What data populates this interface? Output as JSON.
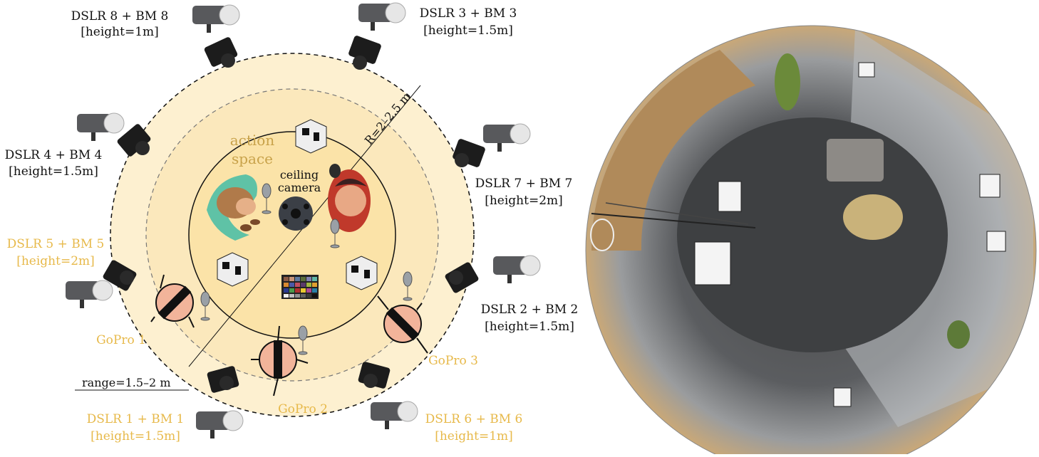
{
  "diagram": {
    "labels": {
      "dslr8": {
        "title": "DSLR 8 + BM 8",
        "height": "[height=1m]"
      },
      "dslr3": {
        "title": "DSLR 3 + BM 3",
        "height": "[height=1.5m]"
      },
      "dslr4": {
        "title": "DSLR 4 + BM 4",
        "height": "[height=1.5m]"
      },
      "dslr7": {
        "title": "DSLR 7 + BM 7",
        "height": "[height=2m]"
      },
      "dslr5": {
        "title": "DSLR 5 + BM 5",
        "height": "[height=2m]"
      },
      "dslr2": {
        "title": "DSLR 2 + BM 2",
        "height": "[height=1.5m]"
      },
      "dslr1": {
        "title": "DSLR 1 + BM 1",
        "height": "[height=1.5m]"
      },
      "dslr6": {
        "title": "DSLR 6 + BM 6",
        "height": "[height=1m]"
      }
    },
    "gopros": [
      "GoPro 1",
      "GoPro 2",
      "GoPro 3"
    ],
    "action_space": [
      "action",
      "space"
    ],
    "ceiling_camera": [
      "ceiling",
      "camera"
    ],
    "radius_label": "R=2–2.5 m",
    "range_label": "range=1.5–2 m"
  },
  "colors": {
    "ring_fill": "#fdf0d0",
    "inner_fill": "#fbe3a8",
    "highlight_label": "#e7b94a",
    "gopro_body": "#f2b49a"
  },
  "icons": [
    "dslr-camera-icon",
    "bm-light-icon",
    "gopro-icon",
    "microphone-icon",
    "aruco-cube-icon",
    "color-checker-icon",
    "ceiling-camera-icon"
  ]
}
